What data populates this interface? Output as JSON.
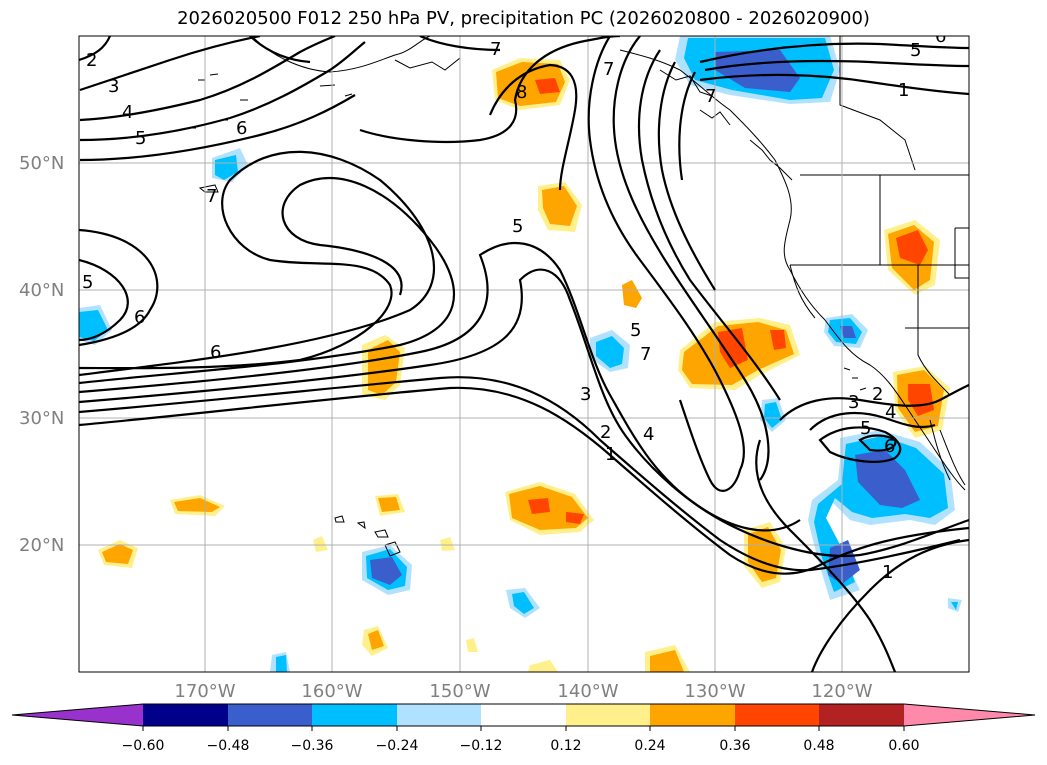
{
  "title": "2026020500 F012 250 hPa PV, precipitation PC (2026020800 - 2026020900)",
  "lat_labels": [
    "50°N",
    "40°N",
    "30°N",
    "20°N"
  ],
  "lon_labels": [
    "170°W",
    "160°W",
    "150°W",
    "140°W",
    "130°W",
    "120°W"
  ],
  "colorbar": {
    "labels": [
      "−0.60",
      "−0.48",
      "−0.36",
      "−0.24",
      "−0.12",
      "0.12",
      "0.24",
      "0.36",
      "0.48",
      "0.60"
    ],
    "colors": [
      "#9932cc",
      "#00008b",
      "#3a5fcd",
      "#00bfff",
      "#b0e2ff",
      "#ffffff",
      "#fff08c",
      "#ffa500",
      "#ff4500",
      "#b22222",
      "#ff89ab"
    ]
  },
  "contour_labels": [
    "2",
    "3",
    "4",
    "5",
    "6",
    "7",
    "8",
    "5",
    "6",
    "5",
    "6",
    "7",
    "7",
    "1",
    "7",
    "5",
    "5",
    "6",
    "7",
    "3",
    "2",
    "1",
    "4",
    "3",
    "5",
    "6",
    "2",
    "4",
    "1"
  ],
  "palette": {
    "orange": "#ffa500",
    "red": "#ff4500",
    "yellow": "#fff08c",
    "light_blue": "#b0e2ff",
    "blue": "#00bfff",
    "dark_blue": "#3a5fcd",
    "grid": "#b0b0b0"
  }
}
